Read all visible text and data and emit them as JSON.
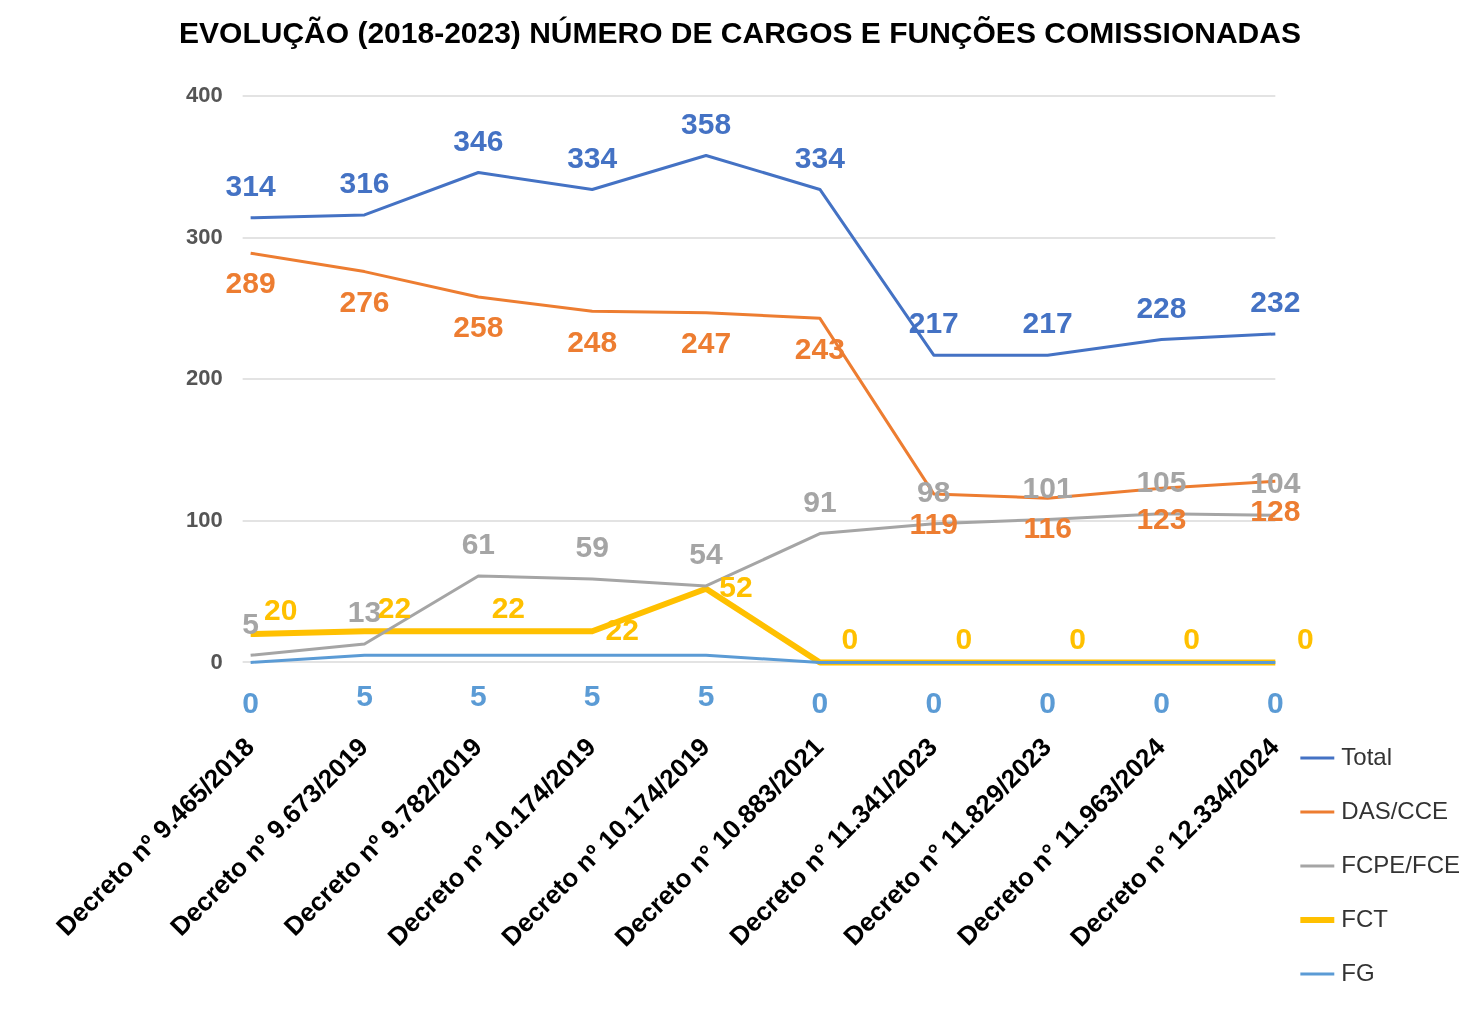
{
  "chart_data": {
    "type": "line",
    "title": "EVOLUÇÃO (2018-2023) NÚMERO DE CARGOS E FUNÇÕES COMISSIONADAS",
    "categories": [
      "Decreto nº 9.465/2018",
      "Decreto nº 9.673/2019",
      "Decreto nº 9.782/2019",
      "Decreto nº 10.174/2019",
      "Decreto nº 10.174/2019",
      "Decreto n° 10.883/2021",
      "Decreto n° 11.341/2023",
      "Decreto n° 11.829/2023",
      "Decreto n° 11.963/2024",
      "Decreto n° 12.334/2024"
    ],
    "series": [
      {
        "name": "Total",
        "color": "#4472c4",
        "values": [
          314,
          316,
          346,
          334,
          358,
          334,
          217,
          217,
          228,
          232
        ]
      },
      {
        "name": "DAS/CCE",
        "color": "#ed7d31",
        "values": [
          289,
          276,
          258,
          248,
          247,
          243,
          119,
          116,
          123,
          128
        ]
      },
      {
        "name": "FCPE/FCE",
        "color": "#a5a5a5",
        "values": [
          5,
          13,
          61,
          59,
          54,
          91,
          98,
          101,
          105,
          104
        ]
      },
      {
        "name": "FCT",
        "color": "#ffc000",
        "values": [
          20,
          22,
          22,
          22,
          52,
          0,
          0,
          0,
          0,
          0
        ]
      },
      {
        "name": "FG",
        "color": "#5b9bd5",
        "values": [
          0,
          5,
          5,
          5,
          5,
          0,
          0,
          0,
          0,
          0
        ]
      }
    ],
    "ylim": [
      0,
      400
    ],
    "yticks": [
      0,
      100,
      200,
      300,
      400
    ],
    "grid": "y",
    "legend": "bottom right",
    "data_labels": true,
    "marker": "none",
    "line_style": "solid"
  }
}
